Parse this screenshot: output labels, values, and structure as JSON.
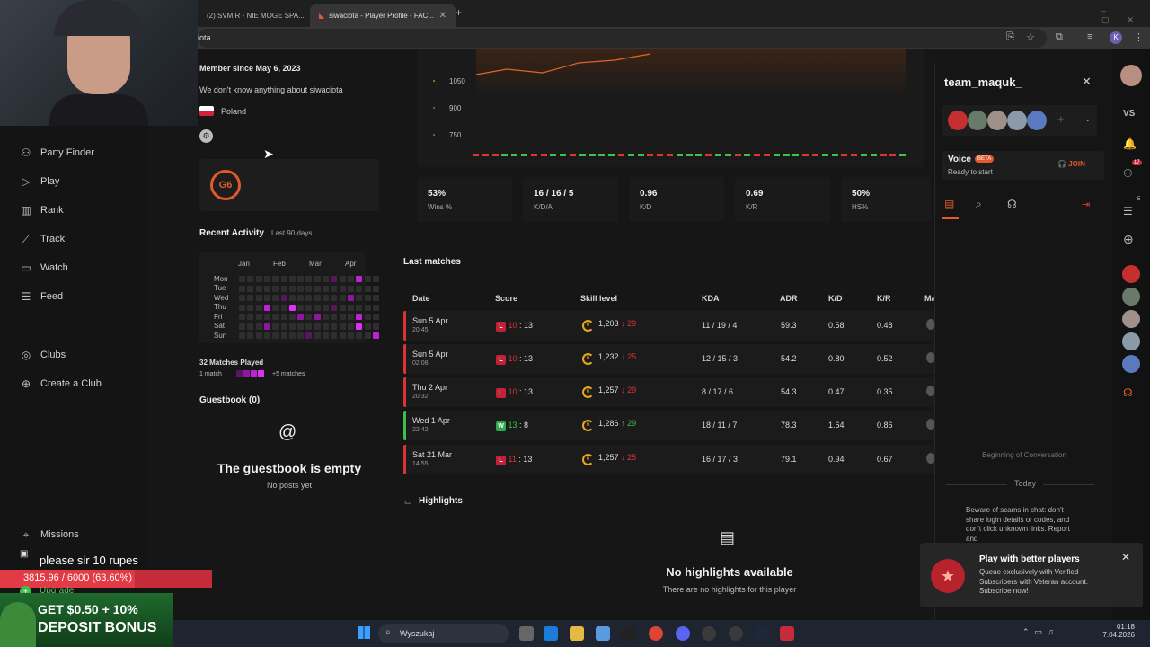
{
  "browser": {
    "tabs": [
      {
        "title": "(2) SVMIR - NIE MOGE SPA..."
      },
      {
        "title": "siwaciota - Player Profile - FAC..."
      }
    ],
    "address": "iota"
  },
  "leftnav": {
    "items": [
      {
        "label": "Party Finder",
        "icon": "party-icon"
      },
      {
        "label": "Play",
        "icon": "play-icon"
      },
      {
        "label": "Rank",
        "icon": "rank-icon"
      },
      {
        "label": "Track",
        "icon": "track-icon"
      },
      {
        "label": "Watch",
        "icon": "watch-icon"
      },
      {
        "label": "Feed",
        "icon": "feed-icon"
      },
      {
        "label": "Clubs",
        "icon": "clubs-icon"
      },
      {
        "label": "Create a Club",
        "icon": "plus-circle-icon"
      },
      {
        "label": "Missions",
        "icon": "missions-icon"
      }
    ],
    "upgrade": "Upgrade"
  },
  "profile": {
    "member_since": "Member since May 6, 2023",
    "about": "We don't know anything about siwaciota",
    "country": "Poland",
    "recent_activity": "Recent Activity",
    "last_days": "Last 90 days",
    "months": [
      "Jan",
      "Feb",
      "Mar",
      "Apr"
    ],
    "days": [
      "Mon",
      "Tue",
      "Wed",
      "Thu",
      "Fri",
      "Sat",
      "Sun"
    ],
    "matches_played": "32 Matches Played",
    "legend_min": "1 match",
    "legend_max": "+5 matches",
    "guestbook_title": "Guestbook (0)",
    "guestbook_empty": "The guestbook is empty",
    "guestbook_sub": "No posts yet"
  },
  "elo_chart": {
    "y_ticks": [
      "1050",
      "900",
      "750"
    ]
  },
  "stats": [
    {
      "value": "53%",
      "label": "Wins %"
    },
    {
      "value": "16 / 16 / 5",
      "label": "K/D/A"
    },
    {
      "value": "0.96",
      "label": "K/D"
    },
    {
      "value": "0.69",
      "label": "K/R"
    },
    {
      "value": "50%",
      "label": "HS%"
    }
  ],
  "matches": {
    "title": "Last matches",
    "headers": [
      "Date",
      "Score",
      "Skill level",
      "KDA",
      "ADR",
      "K/D",
      "K/R",
      "Ma"
    ],
    "rows": [
      {
        "date": "Sun 5 Apr",
        "time": "20:45",
        "result": "L",
        "score_a": "10",
        "score_b": "13",
        "level": "6",
        "elo": "1,203",
        "delta": "29",
        "up": false,
        "kda": "11 / 19 / 4",
        "adr": "59.3",
        "kd": "0.58",
        "kr": "0.48"
      },
      {
        "date": "Sun 5 Apr",
        "time": "02:08",
        "result": "L",
        "score_a": "10",
        "score_b": "13",
        "level": "6",
        "elo": "1,232",
        "delta": "25",
        "up": false,
        "kda": "12 / 15 / 3",
        "adr": "54.2",
        "kd": "0.80",
        "kr": "0.52"
      },
      {
        "date": "Thu 2 Apr",
        "time": "20:32",
        "result": "L",
        "score_a": "10",
        "score_b": "13",
        "level": "6",
        "elo": "1,257",
        "delta": "29",
        "up": false,
        "kda": "8 / 17 / 6",
        "adr": "54.3",
        "kd": "0.47",
        "kr": "0.35"
      },
      {
        "date": "Wed 1 Apr",
        "time": "22:42",
        "result": "W",
        "score_a": "13",
        "score_b": "8",
        "level": "6",
        "elo": "1,286",
        "delta": "29",
        "up": true,
        "kda": "18 / 11 / 7",
        "adr": "78.3",
        "kd": "1.64",
        "kr": "0.86"
      },
      {
        "date": "Sat 21 Mar",
        "time": "14:55",
        "result": "L",
        "score_a": "11",
        "score_b": "13",
        "level": "6",
        "elo": "1,257",
        "delta": "25",
        "up": false,
        "kda": "16 / 17 / 3",
        "adr": "79.1",
        "kd": "0.94",
        "kr": "0.67"
      }
    ]
  },
  "highlights": {
    "title": "Highlights",
    "empty": "No highlights available",
    "sub": "There are no highlights for this player"
  },
  "chat": {
    "team": "team_maquk_",
    "voice": "Voice",
    "beta": "BETA",
    "ready": "Ready to start",
    "join": "JOIN",
    "beginning": "Beginning of Conversation",
    "today": "Today",
    "warning": "Beware of scams in chat: don't share login details or codes, and don't click unknown links. Report and",
    "vs": "VS",
    "notif_count": "17",
    "friend_count": "5"
  },
  "toast": {
    "title": "Play with better players",
    "body": "Queue exclusively with Verified Subscribers with Veteran account. Subscribe now!"
  },
  "overlay": {
    "donation_msg": "please sir 10 rupes",
    "donation_progress_text": "3815.96 / 6000 (63.60%)",
    "donation_progress": 0.636,
    "promo_line1": "GET $0.50 + 10%",
    "promo_line2": "DEPOSIT BONUS"
  },
  "taskbar": {
    "search": "Wyszukaj",
    "time": "01:18",
    "date": "7.04.2026"
  }
}
